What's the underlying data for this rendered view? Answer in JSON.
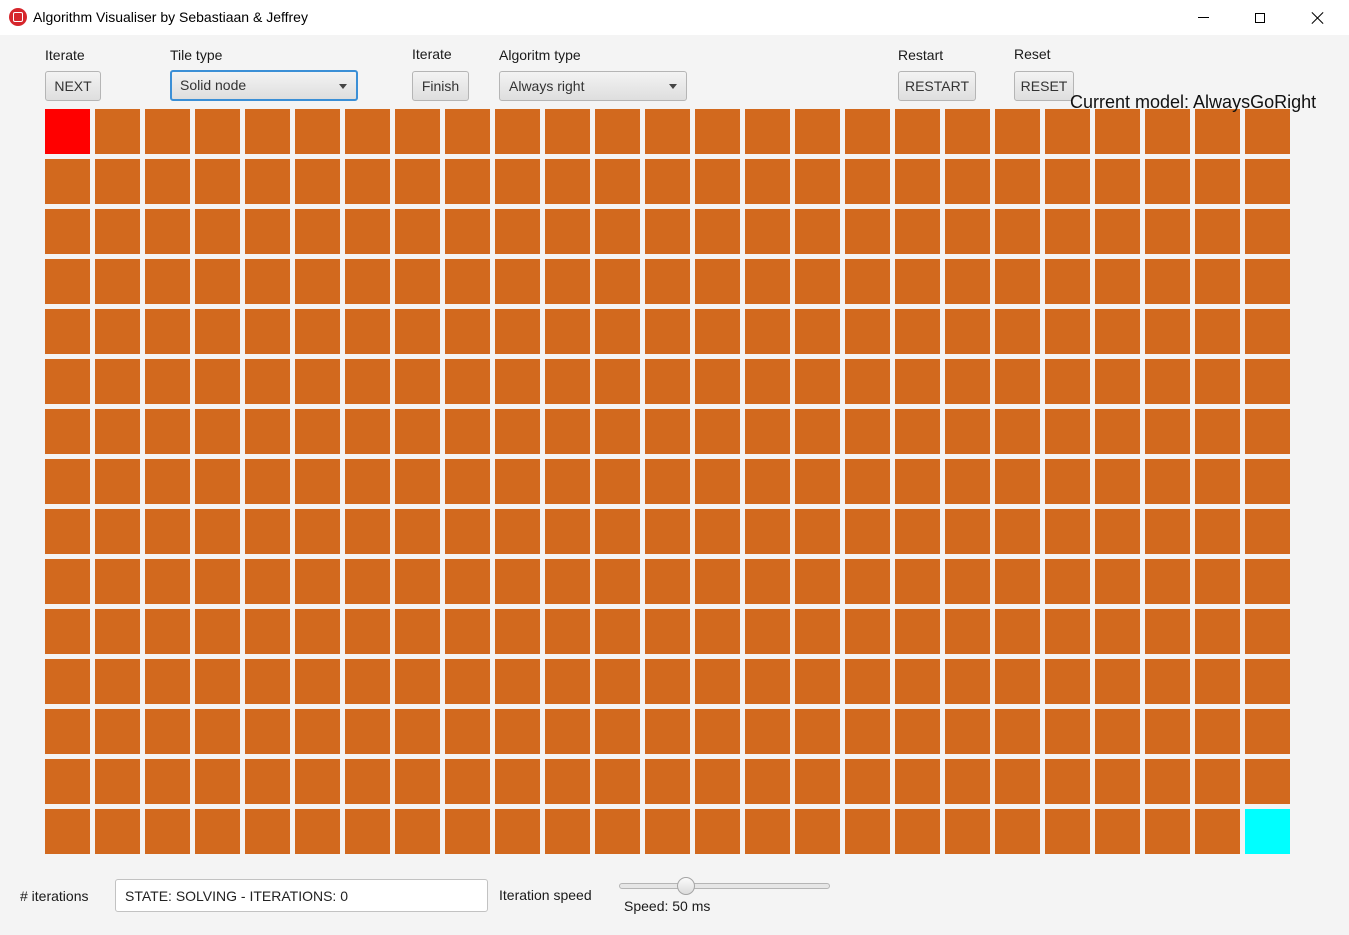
{
  "window": {
    "title": "Algorithm Visualiser by Sebastiaan & Jeffrey",
    "controls": [
      "minimize-icon",
      "maximize-icon",
      "close-icon"
    ]
  },
  "toolbar": {
    "iterate_label": "Iterate",
    "next_button": "NEXT",
    "tile_type_label": "Tile type",
    "tile_type_value": "Solid node",
    "iterate_finish_label": "Iterate",
    "finish_button": "Finish",
    "algorithm_type_label": "Algoritm type",
    "algorithm_type_value": "Always right",
    "restart_label": "Restart",
    "restart_button": "RESTART",
    "reset_label": "Reset",
    "reset_button": "RESET",
    "current_model": "Current model: AlwaysGoRight"
  },
  "grid": {
    "columns": 25,
    "rows": 15,
    "default_color": "#d2691e",
    "start": {
      "row": 0,
      "col": 0,
      "color": "#ff0000"
    },
    "end": {
      "row": 14,
      "col": 24,
      "color": "#00ffff"
    }
  },
  "bottom": {
    "iterations_label": "# iterations",
    "iterations_value": "STATE: SOLVING - ITERATIONS: 0",
    "speed_label": "Iteration speed",
    "speed_text": "Speed: 50 ms",
    "speed_slider_fraction": 0.3
  }
}
